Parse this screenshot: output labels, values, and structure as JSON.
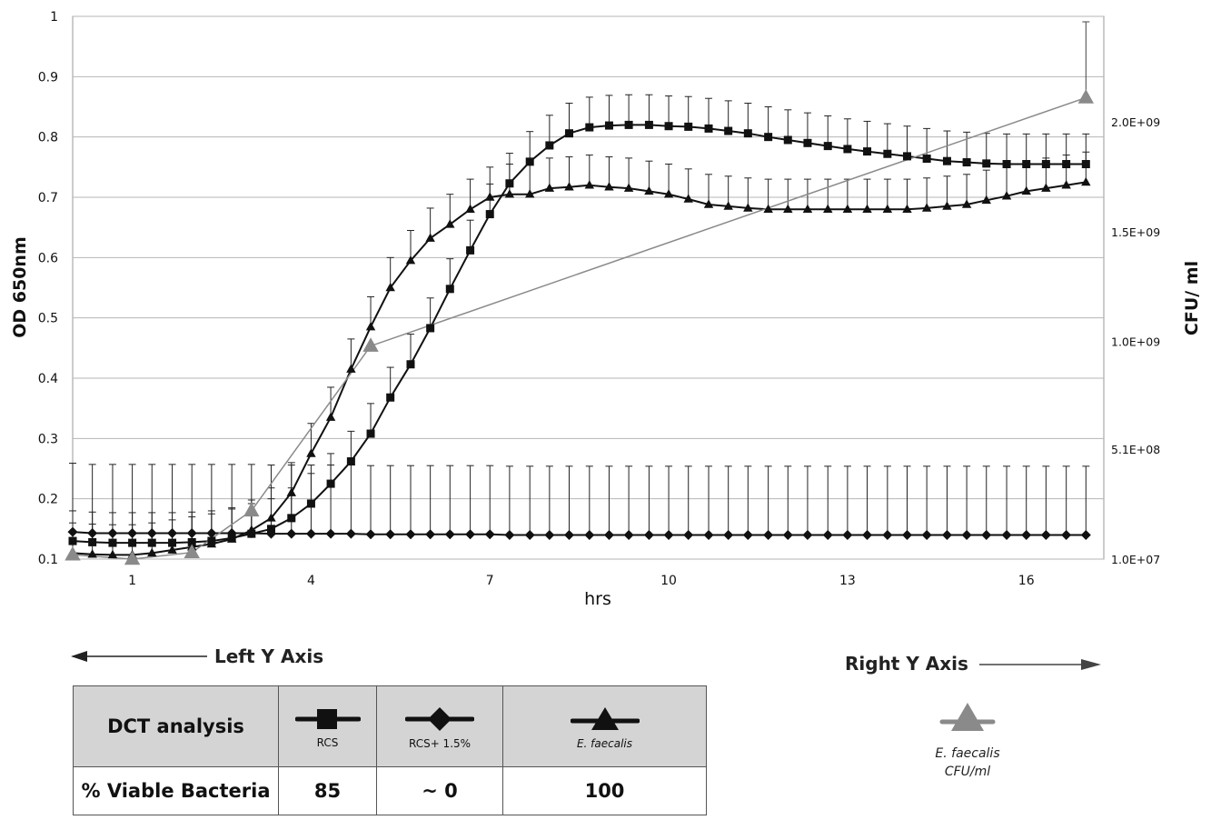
{
  "chart_data": {
    "type": "line",
    "xlabel": "hrs",
    "ylabel_left": "OD 650nm",
    "ylabel_right": "CFU/ ml",
    "x_ticks": [
      1,
      4,
      7,
      10,
      13,
      16
    ],
    "y_left_ticks": [
      "0.1",
      "0.2",
      "0.3",
      "0.4",
      "0.5",
      "0.6",
      "0.7",
      "0.8",
      "0.9",
      "1"
    ],
    "y_left_lim": [
      0.1,
      1.0
    ],
    "y_right_ticks": [
      {
        "label": "1.0E+07",
        "value": 10000000
      },
      {
        "label": "5.1E+08",
        "value": 510000000
      },
      {
        "label": "1.0E+09",
        "value": 1000000000
      },
      {
        "label": "1.5E+09",
        "value": 1500000000
      },
      {
        "label": "2.0E+09",
        "value": 2000000000
      }
    ],
    "y_right_lim": [
      10000000,
      2480000000
    ],
    "x_lim": [
      0,
      17.3
    ],
    "grid": "horizontal",
    "series": [
      {
        "name": "RCS",
        "marker": "square",
        "axis": "left",
        "color": "#111111",
        "x": [
          0.0,
          0.33,
          0.67,
          1.0,
          1.33,
          1.67,
          2.0,
          2.33,
          2.67,
          3.0,
          3.33,
          3.67,
          4.0,
          4.33,
          4.67,
          5.0,
          5.33,
          5.67,
          6.0,
          6.33,
          6.67,
          7.0,
          7.33,
          7.67,
          8.0,
          8.33,
          8.67,
          9.0,
          9.33,
          9.67,
          10.0,
          10.33,
          10.67,
          11.0,
          11.33,
          11.67,
          12.0,
          12.33,
          12.67,
          13.0,
          13.33,
          13.67,
          14.0,
          14.33,
          14.67,
          15.0,
          15.33,
          15.67,
          16.0,
          16.33,
          16.67,
          17.0
        ],
        "values": [
          0.13,
          0.128,
          0.127,
          0.127,
          0.127,
          0.127,
          0.128,
          0.13,
          0.135,
          0.142,
          0.15,
          0.168,
          0.192,
          0.225,
          0.262,
          0.308,
          0.368,
          0.423,
          0.483,
          0.548,
          0.612,
          0.672,
          0.723,
          0.759,
          0.786,
          0.806,
          0.816,
          0.819,
          0.82,
          0.82,
          0.818,
          0.817,
          0.814,
          0.81,
          0.806,
          0.8,
          0.795,
          0.79,
          0.785,
          0.78,
          0.776,
          0.772,
          0.768,
          0.764,
          0.76,
          0.758,
          0.756,
          0.755,
          0.755,
          0.755,
          0.755,
          0.755
        ],
        "error": 0.05
      },
      {
        "name": "RCS+ 1.5%",
        "marker": "diamond",
        "axis": "left",
        "color": "#111111",
        "x": [
          0.0,
          0.33,
          0.67,
          1.0,
          1.33,
          1.67,
          2.0,
          2.33,
          2.67,
          3.0,
          3.33,
          3.67,
          4.0,
          4.33,
          4.67,
          5.0,
          5.33,
          5.67,
          6.0,
          6.33,
          6.67,
          7.0,
          7.33,
          7.67,
          8.0,
          8.33,
          8.67,
          9.0,
          9.33,
          9.67,
          10.0,
          10.33,
          10.67,
          11.0,
          11.33,
          11.67,
          12.0,
          12.33,
          12.67,
          13.0,
          13.33,
          13.67,
          14.0,
          14.33,
          14.67,
          15.0,
          15.33,
          15.67,
          16.0,
          16.33,
          16.67,
          17.0
        ],
        "values": [
          0.145,
          0.143,
          0.143,
          0.143,
          0.143,
          0.143,
          0.143,
          0.143,
          0.143,
          0.143,
          0.142,
          0.142,
          0.142,
          0.142,
          0.142,
          0.141,
          0.141,
          0.141,
          0.141,
          0.141,
          0.141,
          0.141,
          0.14,
          0.14,
          0.14,
          0.14,
          0.14,
          0.14,
          0.14,
          0.14,
          0.14,
          0.14,
          0.14,
          0.14,
          0.14,
          0.14,
          0.14,
          0.14,
          0.14,
          0.14,
          0.14,
          0.14,
          0.14,
          0.14,
          0.14,
          0.14,
          0.14,
          0.14,
          0.14,
          0.14,
          0.14,
          0.14
        ],
        "error": 0.114
      },
      {
        "name": "E. faecalis",
        "marker": "triangle",
        "axis": "left",
        "color": "#111111",
        "x": [
          0.0,
          0.33,
          0.67,
          1.0,
          1.33,
          1.67,
          2.0,
          2.33,
          2.67,
          3.0,
          3.33,
          3.67,
          4.0,
          4.33,
          4.67,
          5.0,
          5.33,
          5.67,
          6.0,
          6.33,
          6.67,
          7.0,
          7.33,
          7.67,
          8.0,
          8.33,
          8.67,
          9.0,
          9.33,
          9.67,
          10.0,
          10.33,
          10.67,
          11.0,
          11.33,
          11.67,
          12.0,
          12.33,
          12.67,
          13.0,
          13.33,
          13.67,
          14.0,
          14.33,
          14.67,
          15.0,
          15.33,
          15.67,
          16.0,
          16.33,
          16.67,
          17.0
        ],
        "values": [
          0.11,
          0.108,
          0.107,
          0.107,
          0.11,
          0.115,
          0.12,
          0.125,
          0.133,
          0.148,
          0.168,
          0.21,
          0.275,
          0.335,
          0.415,
          0.485,
          0.55,
          0.595,
          0.632,
          0.655,
          0.68,
          0.7,
          0.705,
          0.705,
          0.715,
          0.717,
          0.72,
          0.717,
          0.715,
          0.71,
          0.705,
          0.697,
          0.688,
          0.685,
          0.682,
          0.68,
          0.68,
          0.68,
          0.68,
          0.68,
          0.68,
          0.68,
          0.68,
          0.682,
          0.685,
          0.688,
          0.695,
          0.702,
          0.71,
          0.715,
          0.72,
          0.725
        ],
        "error": 0.05
      },
      {
        "name": "E. faecalis CFU/ml",
        "marker": "triangle",
        "axis": "right",
        "color": "#8a8a8a",
        "x": [
          0.0,
          1.0,
          2.0,
          3.0,
          5.0,
          17.0
        ],
        "values": [
          30000000,
          10000000,
          40000000,
          230000000,
          980000000,
          2110000000
        ],
        "error": 0
      }
    ]
  },
  "annotations": {
    "left_arrow_label": "Left Y Axis",
    "right_arrow_label": "Right Y Axis"
  },
  "legend_table": {
    "header_title": "DCT analysis",
    "row_title": "% Viable Bacteria",
    "columns": [
      {
        "label": "RCS",
        "marker": "square",
        "value": "85"
      },
      {
        "label": "RCS+ 1.5%",
        "marker": "diamond",
        "value": "~ 0"
      },
      {
        "label": "E. faecalis",
        "marker": "triangle",
        "value": "100"
      }
    ]
  },
  "right_legend": {
    "line1": "E. faecalis",
    "line2": "CFU/ml",
    "color": "#8a8a8a"
  }
}
